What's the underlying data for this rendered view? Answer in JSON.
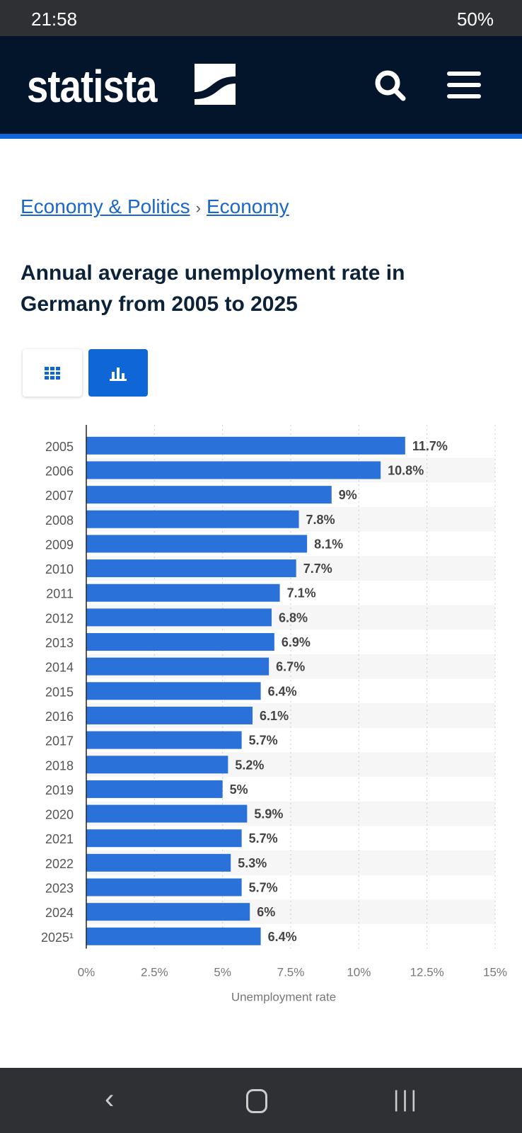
{
  "status_bar": {
    "time": "21:58",
    "battery": "50%"
  },
  "header": {
    "logo": "statista"
  },
  "breadcrumb": [
    {
      "label": "Economy & Politics"
    },
    {
      "label": "Economy"
    }
  ],
  "page_title": "Annual average unemployment rate in Germany from 2005 to 2025",
  "view_toggle": {
    "table_icon": "grid-icon",
    "chart_icon": "bar-chart-icon",
    "active": "chart"
  },
  "colors": {
    "bar": "#2a72d9",
    "brand_blue": "#0f66d6",
    "header": "#02152b"
  },
  "chart_data": {
    "type": "bar",
    "orientation": "horizontal",
    "categories": [
      "2005",
      "2006",
      "2007",
      "2008",
      "2009",
      "2010",
      "2011",
      "2012",
      "2013",
      "2014",
      "2015",
      "2016",
      "2017",
      "2018",
      "2019",
      "2020",
      "2021",
      "2022",
      "2023",
      "2024",
      "2025¹"
    ],
    "values": [
      11.7,
      10.8,
      9,
      7.8,
      8.1,
      7.7,
      7.1,
      6.8,
      6.9,
      6.7,
      6.4,
      6.1,
      5.7,
      5.2,
      5,
      5.9,
      5.7,
      5.3,
      5.7,
      6,
      6.4
    ],
    "data_labels": [
      "11.7%",
      "10.8%",
      "9%",
      "7.8%",
      "8.1%",
      "7.7%",
      "7.1%",
      "6.8%",
      "6.9%",
      "6.7%",
      "6.4%",
      "6.1%",
      "5.7%",
      "5.2%",
      "5%",
      "5.9%",
      "5.7%",
      "5.3%",
      "5.7%",
      "6%",
      "6.4%"
    ],
    "xlabel": "Unemployment rate",
    "xlim": [
      0,
      15
    ],
    "xticks": [
      "0%",
      "2.5%",
      "5%",
      "7.5%",
      "10%",
      "12.5%",
      "15%"
    ],
    "grid": "vertical dotted"
  }
}
